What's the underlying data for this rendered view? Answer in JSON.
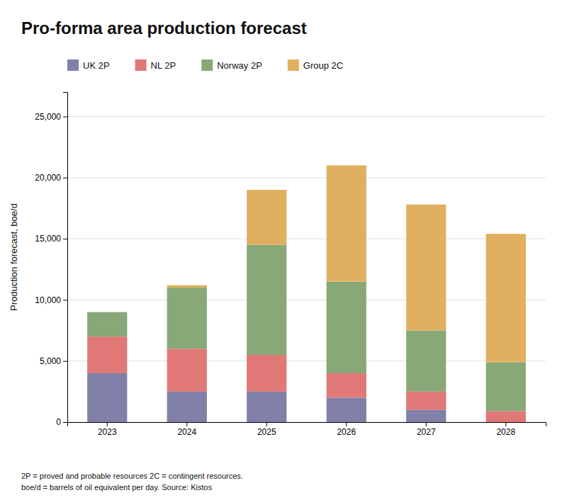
{
  "chart_data": {
    "type": "bar",
    "stacked": true,
    "title": "Pro-forma area production forecast",
    "y_label": "Production forecast, boe/d",
    "footnote": "2P = proved and probable resources 2C = contingent resources.\nboe/d = barrels of oil equivalent per day. Source: Kistos",
    "categories": [
      "2023",
      "2024",
      "2025",
      "2026",
      "2027",
      "2028"
    ],
    "series": [
      {
        "name": "UK 2P",
        "color": "#8080a8",
        "values": [
          4000,
          2500,
          2500,
          2000,
          1000,
          0
        ]
      },
      {
        "name": "NL 2P",
        "color": "#e07878",
        "values": [
          3000,
          3500,
          3000,
          2000,
          1500,
          900
        ]
      },
      {
        "name": "Norway 2P",
        "color": "#88a878",
        "values": [
          2000,
          5000,
          9000,
          7500,
          5000,
          4000
        ]
      },
      {
        "name": "Group 2C",
        "color": "#e0b060",
        "values": [
          0,
          200,
          4500,
          9500,
          10300,
          10500
        ]
      }
    ],
    "ylim": [
      0,
      27000
    ],
    "yticks": [
      0,
      {
        "value": 5000,
        "label": "5,000"
      },
      {
        "value": 10000,
        "label": "10,000"
      },
      {
        "value": 15000,
        "label": "15,000"
      },
      {
        "value": 20000,
        "label": "20,000"
      },
      {
        "value": 25000,
        "label": "25,000"
      }
    ],
    "grid": true,
    "legend": "top"
  }
}
